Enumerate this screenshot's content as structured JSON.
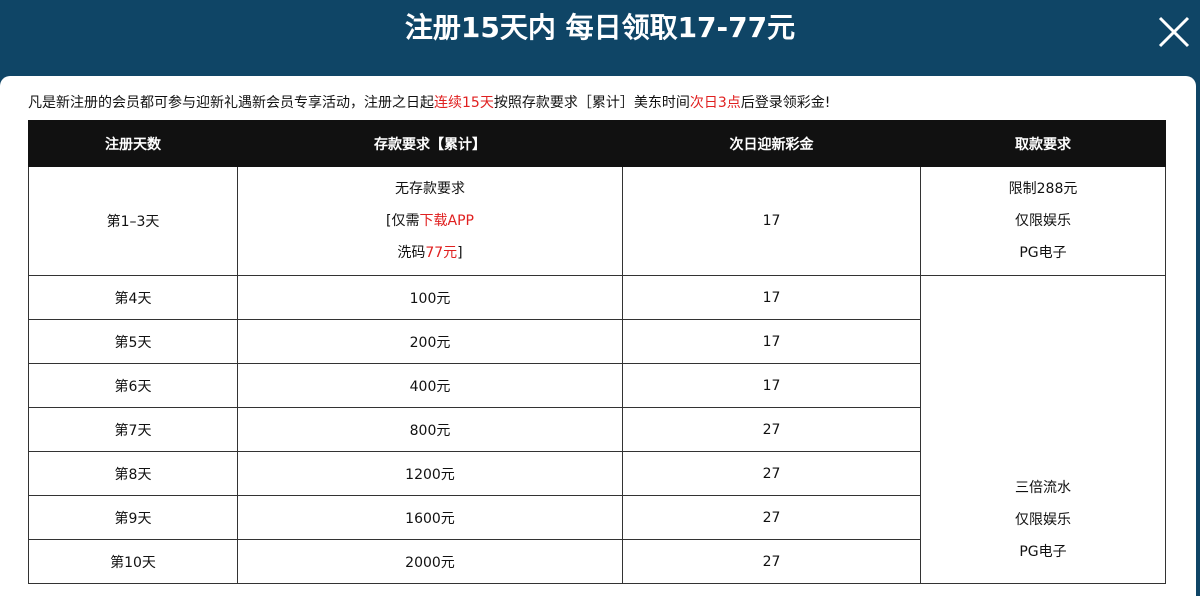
{
  "header": {
    "title": "注册15天内 每日领取17-77元",
    "close_icon": "close-icon"
  },
  "intro": {
    "part1": "凡是新注册的会员都可参与迎新礼遇新会员专享活动，注册之日起",
    "highlight1": "连续15天",
    "part2": "按照存款要求［累计］美东时间",
    "highlight2": "次日3点",
    "part3": "后登录领彩金!"
  },
  "table": {
    "columns": [
      "注册天数",
      "存款要求【累计】",
      "次日迎新彩金",
      "取款要求"
    ],
    "first_row": {
      "day": "第1–3天",
      "deposit_line1": "无存款要求",
      "deposit_line2_prefix": "[仅需",
      "deposit_line2_red": "下载APP",
      "deposit_line3_prefix": "洗码",
      "deposit_line3_red": "77元",
      "deposit_line3_suffix": "]",
      "bonus": "17",
      "withdraw": [
        "限制288元",
        "仅限娱乐",
        "PG电子"
      ]
    },
    "rows": [
      {
        "day": "第4天",
        "deposit": "100元",
        "bonus": "17"
      },
      {
        "day": "第5天",
        "deposit": "200元",
        "bonus": "17"
      },
      {
        "day": "第6天",
        "deposit": "400元",
        "bonus": "17"
      },
      {
        "day": "第7天",
        "deposit": "800元",
        "bonus": "27"
      },
      {
        "day": "第8天",
        "deposit": "1200元",
        "bonus": "27"
      },
      {
        "day": "第9天",
        "deposit": "1600元",
        "bonus": "27"
      },
      {
        "day": "第10天",
        "deposit": "2000元",
        "bonus": "27"
      }
    ],
    "merged_withdraw": [
      "三倍流水",
      "仅限娱乐",
      "PG电子"
    ]
  },
  "colors": {
    "header_bg": "#0f4566",
    "highlight": "#e02020",
    "table_header_bg": "#111111"
  }
}
